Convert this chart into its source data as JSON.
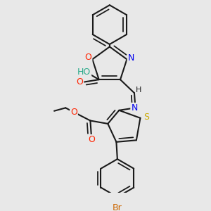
{
  "background_color": "#e8e8e8",
  "bond_color": "#1a1a1a",
  "bond_width": 1.5,
  "atom_colors": {
    "O": "#ff2200",
    "N": "#0000ee",
    "S": "#ccaa00",
    "Br": "#cc6600",
    "HO": "#2aaa8a",
    "C": "#1a1a1a"
  },
  "font_size": 9,
  "fig_size": [
    3.0,
    3.0
  ],
  "dpi": 100
}
